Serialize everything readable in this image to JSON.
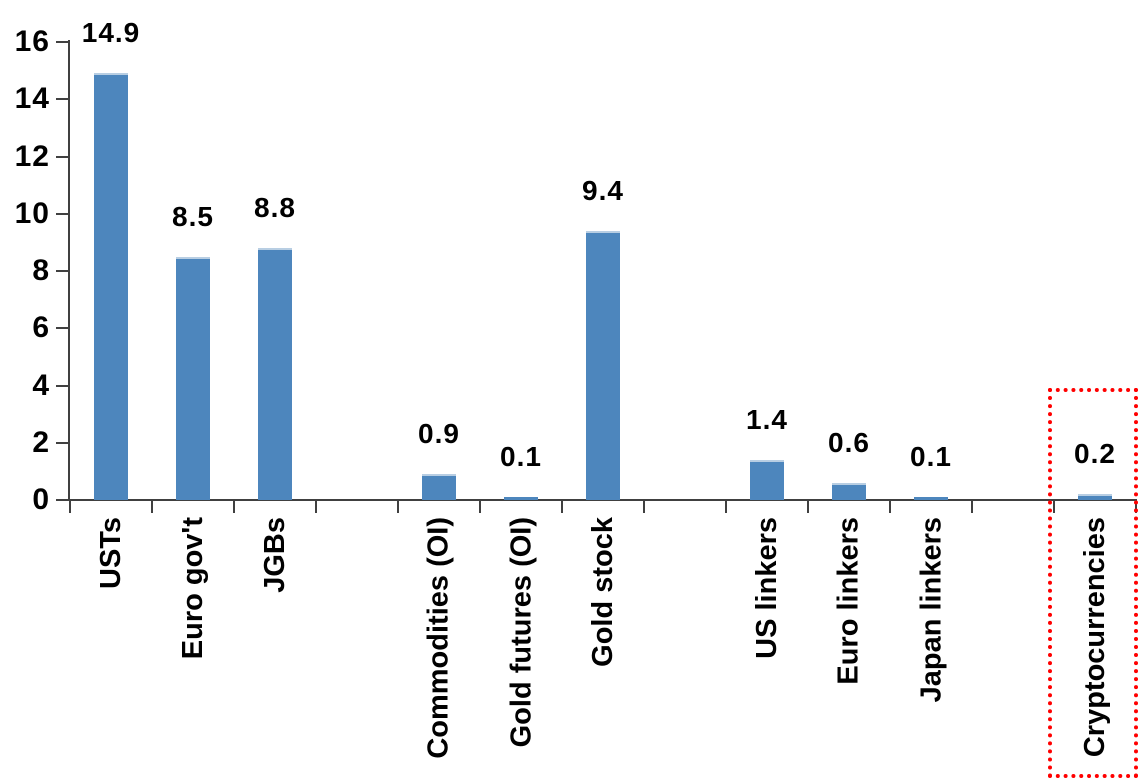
{
  "chart_data": {
    "type": "bar",
    "title": "",
    "xlabel": "",
    "ylabel": "",
    "grid": false,
    "legend": null,
    "y_axis": {
      "min": 0,
      "max": 16,
      "tick_step": 2,
      "ticks": [
        "0",
        "2",
        "4",
        "6",
        "8",
        "10",
        "12",
        "14",
        "16"
      ]
    },
    "bar_groups": [
      {
        "name": "government-bonds",
        "highlighted": false,
        "items": [
          {
            "label": "USTs",
            "value": 14.9,
            "value_label": "14.9"
          },
          {
            "label": "Euro gov't",
            "value": 8.5,
            "value_label": "8.5"
          },
          {
            "label": "JGBs",
            "value": 8.8,
            "value_label": "8.8"
          }
        ]
      },
      {
        "name": "gold-and-commodities",
        "highlighted": false,
        "items": [
          {
            "label": "Commodities (OI)",
            "value": 0.9,
            "value_label": "0.9"
          },
          {
            "label": "Gold futures (OI)",
            "value": 0.1,
            "value_label": "0.1"
          },
          {
            "label": "Gold stock",
            "value": 9.4,
            "value_label": "9.4"
          }
        ]
      },
      {
        "name": "inflation-linkers",
        "highlighted": false,
        "items": [
          {
            "label": "US linkers",
            "value": 1.4,
            "value_label": "1.4"
          },
          {
            "label": "Euro linkers",
            "value": 0.6,
            "value_label": "0.6"
          },
          {
            "label": "Japan linkers",
            "value": 0.1,
            "value_label": "0.1"
          }
        ]
      },
      {
        "name": "crypto",
        "highlighted": true,
        "items": [
          {
            "label": "Cryptocurrencies",
            "value": 0.2,
            "value_label": "0.2"
          }
        ]
      }
    ],
    "colors": {
      "bar": "#4d86bd",
      "bar_top_edge": "#b8cee3",
      "axis": "#404040",
      "text": "#000000",
      "highlight_box": "#ff0000"
    }
  }
}
